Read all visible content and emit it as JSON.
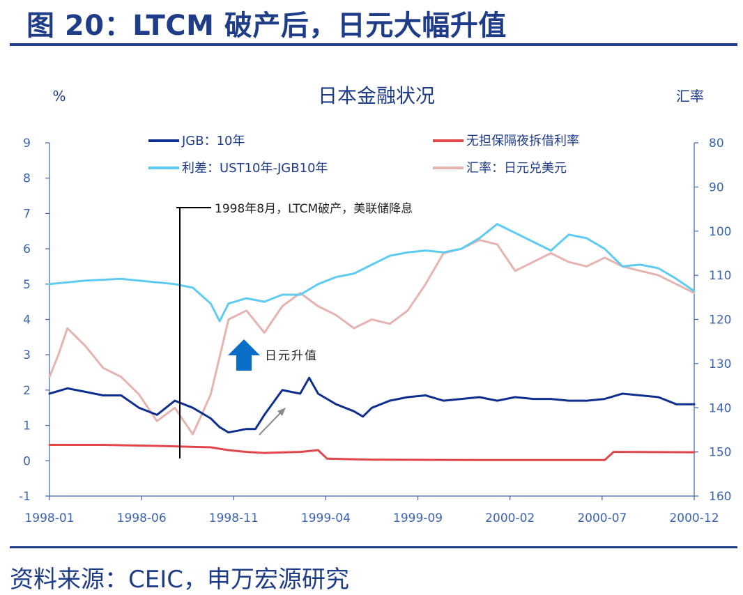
{
  "figure": {
    "title": "图 20：LTCM 破产后，日元大幅升值",
    "source": "资料来源：CEIC，申万宏源研究"
  },
  "colors": {
    "jgb": "#0f2f8f",
    "call": "#e0464b",
    "spread": "#5ecbf2",
    "fx": "#e5b3b0",
    "accent": "#1f3c88",
    "arrow_up": "#0a6ec6",
    "arrow_small": "#8a8a8a"
  },
  "chart_data": {
    "type": "line",
    "title": "日本金融状况",
    "left_unit": "%",
    "right_unit": "汇率",
    "ylim_left": [
      -1,
      9
    ],
    "ylim_right": [
      160,
      80
    ],
    "right_axis_inverted": true,
    "y_ticks_left": [
      "9",
      "8",
      "7",
      "6",
      "5",
      "4",
      "3",
      "2",
      "1",
      "0",
      "-1"
    ],
    "y_ticks_right": [
      "80",
      "90",
      "100",
      "110",
      "120",
      "130",
      "140",
      "150",
      "160"
    ],
    "x_ticks": [
      "1998-01",
      "1998-06",
      "1998-11",
      "1999-04",
      "1999-09",
      "2000-02",
      "2000-07",
      "2000-12"
    ],
    "x_range_months": [
      0,
      36
    ],
    "legend_placement": "top",
    "series": [
      {
        "name": "JGB：10年",
        "axis": "left",
        "points": [
          [
            0,
            1.9
          ],
          [
            1,
            2.05
          ],
          [
            2,
            1.95
          ],
          [
            3,
            1.85
          ],
          [
            4,
            1.85
          ],
          [
            5,
            1.5
          ],
          [
            6,
            1.3
          ],
          [
            7,
            1.7
          ],
          [
            8,
            1.5
          ],
          [
            9,
            1.2
          ],
          [
            9.5,
            0.95
          ],
          [
            10,
            0.8
          ],
          [
            11,
            0.9
          ],
          [
            11.5,
            0.9
          ],
          [
            12,
            1.3
          ],
          [
            13,
            2.0
          ],
          [
            14,
            1.9
          ],
          [
            14.5,
            2.35
          ],
          [
            15,
            1.9
          ],
          [
            16,
            1.6
          ],
          [
            17,
            1.4
          ],
          [
            17.5,
            1.25
          ],
          [
            18,
            1.5
          ],
          [
            19,
            1.7
          ],
          [
            20,
            1.8
          ],
          [
            21,
            1.85
          ],
          [
            22,
            1.7
          ],
          [
            23,
            1.75
          ],
          [
            24,
            1.8
          ],
          [
            25,
            1.7
          ],
          [
            26,
            1.8
          ],
          [
            27,
            1.75
          ],
          [
            28,
            1.75
          ],
          [
            29,
            1.7
          ],
          [
            30,
            1.7
          ],
          [
            31,
            1.75
          ],
          [
            32,
            1.9
          ],
          [
            33,
            1.85
          ],
          [
            34,
            1.8
          ],
          [
            35,
            1.6
          ],
          [
            36,
            1.6
          ]
        ]
      },
      {
        "name": "无担保隔夜拆借利率",
        "axis": "left",
        "points": [
          [
            0,
            0.45
          ],
          [
            3,
            0.45
          ],
          [
            6,
            0.42
          ],
          [
            9,
            0.38
          ],
          [
            10,
            0.3
          ],
          [
            11,
            0.25
          ],
          [
            12,
            0.22
          ],
          [
            14,
            0.25
          ],
          [
            15,
            0.3
          ],
          [
            15.5,
            0.06
          ],
          [
            18,
            0.03
          ],
          [
            24,
            0.02
          ],
          [
            31,
            0.02
          ],
          [
            31.5,
            0.25
          ],
          [
            36,
            0.24
          ]
        ]
      },
      {
        "name": "利差：UST10年-JGB10年",
        "axis": "left",
        "points": [
          [
            0,
            5.0
          ],
          [
            2,
            5.1
          ],
          [
            4,
            5.15
          ],
          [
            6,
            5.05
          ],
          [
            7,
            5.0
          ],
          [
            8,
            4.9
          ],
          [
            9,
            4.45
          ],
          [
            9.5,
            3.95
          ],
          [
            10,
            4.45
          ],
          [
            11,
            4.6
          ],
          [
            12,
            4.5
          ],
          [
            13,
            4.7
          ],
          [
            14,
            4.7
          ],
          [
            15,
            5.0
          ],
          [
            16,
            5.2
          ],
          [
            17,
            5.3
          ],
          [
            18,
            5.55
          ],
          [
            19,
            5.8
          ],
          [
            20,
            5.9
          ],
          [
            21,
            5.95
          ],
          [
            22,
            5.9
          ],
          [
            23,
            6.0
          ],
          [
            24,
            6.3
          ],
          [
            25,
            6.7
          ],
          [
            26,
            6.45
          ],
          [
            27,
            6.2
          ],
          [
            28,
            5.95
          ],
          [
            29,
            6.4
          ],
          [
            30,
            6.3
          ],
          [
            31,
            6.0
          ],
          [
            32,
            5.5
          ],
          [
            33,
            5.55
          ],
          [
            34,
            5.45
          ],
          [
            35,
            5.15
          ],
          [
            36,
            4.8
          ]
        ]
      },
      {
        "name": "汇率：日元兑美元",
        "axis": "right",
        "points": [
          [
            0,
            133
          ],
          [
            0.5,
            128
          ],
          [
            1,
            122
          ],
          [
            2,
            126
          ],
          [
            3,
            131
          ],
          [
            4,
            133
          ],
          [
            5,
            137
          ],
          [
            6,
            143
          ],
          [
            7,
            140
          ],
          [
            8,
            146
          ],
          [
            9,
            137
          ],
          [
            10,
            120
          ],
          [
            11,
            118
          ],
          [
            12,
            123
          ],
          [
            13,
            117
          ],
          [
            14,
            114
          ],
          [
            15,
            117
          ],
          [
            16,
            119
          ],
          [
            17,
            122
          ],
          [
            18,
            120
          ],
          [
            19,
            121
          ],
          [
            20,
            118
          ],
          [
            21,
            112
          ],
          [
            22,
            105
          ],
          [
            23,
            104
          ],
          [
            24,
            102
          ],
          [
            25,
            103
          ],
          [
            26,
            109
          ],
          [
            27,
            107
          ],
          [
            28,
            105
          ],
          [
            29,
            107
          ],
          [
            30,
            108
          ],
          [
            31,
            106
          ],
          [
            32,
            108
          ],
          [
            33,
            109
          ],
          [
            34,
            110
          ],
          [
            35,
            112
          ],
          [
            36,
            114
          ]
        ]
      }
    ],
    "annotations": [
      {
        "text": "1998年8月，LTCM破产，美联储降息",
        "x_month": 7.3
      },
      {
        "text": "日元升值"
      }
    ]
  }
}
